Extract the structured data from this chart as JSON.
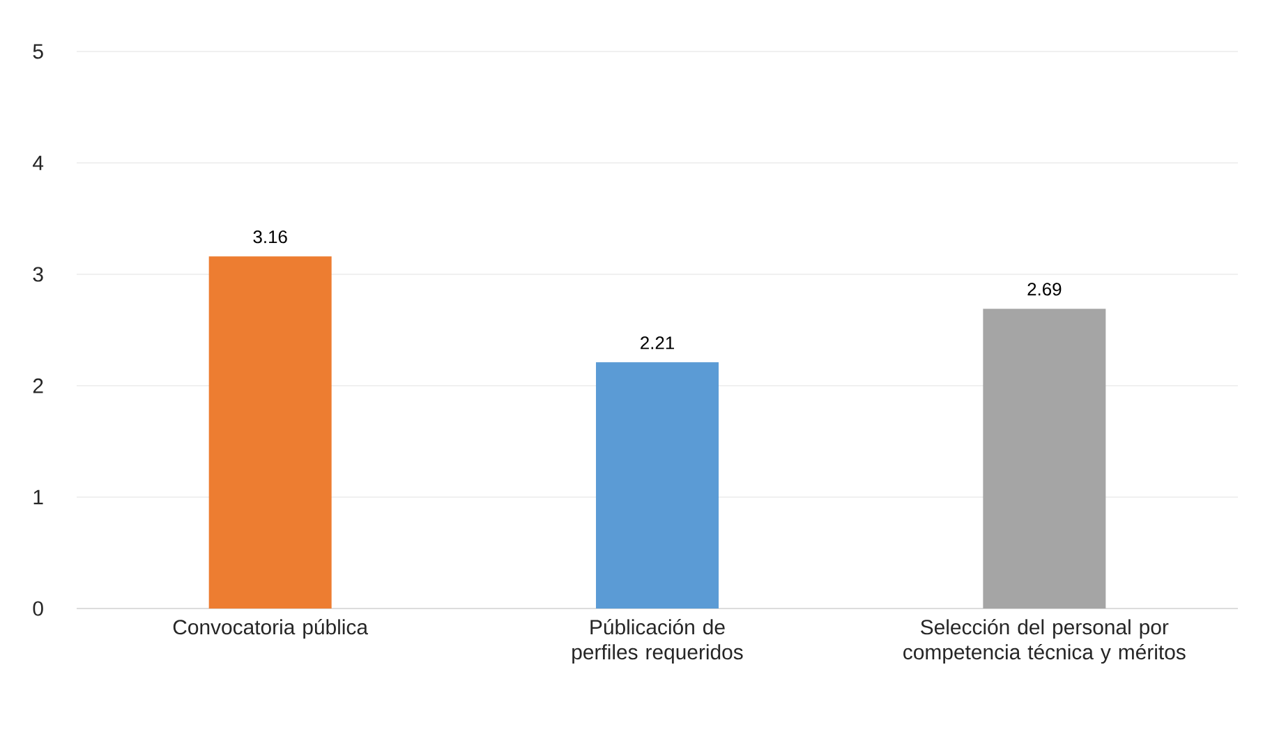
{
  "chart_data": {
    "type": "bar",
    "categories": [
      "Convocatoria pública",
      "Públicación de perfiles requeridos",
      "Selección del personal por competencia técnica y méritos"
    ],
    "values": [
      3.16,
      2.21,
      2.69
    ],
    "colors": [
      "#ed7d31",
      "#5b9bd5",
      "#a5a5a5"
    ],
    "ylim": [
      0,
      5
    ],
    "yticks": [
      0,
      1,
      2,
      3,
      4,
      5
    ],
    "grid": "y",
    "data_labels": true
  }
}
